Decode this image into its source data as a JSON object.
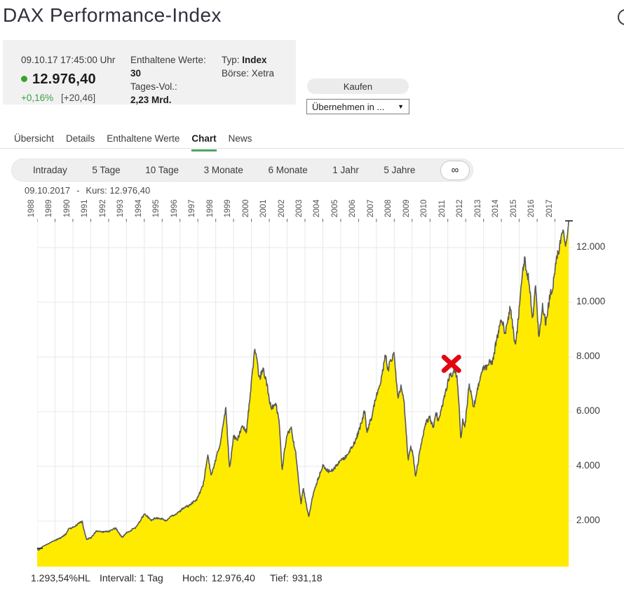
{
  "header": {
    "title": "DAX Performance-Index",
    "search_icon": "magnifier-icon"
  },
  "quote_box": {
    "timestamp": "09.10.17  17:45:00 Uhr",
    "price": "12.976,40",
    "change_percent": "+0,16%",
    "change_absolute": "[+20,46]",
    "included_values_label": "Enthaltene Werte:",
    "included_values": "30",
    "volume_label": "Tages-Vol.:",
    "volume": "2,23 Mrd.",
    "type_label": "Typ:",
    "type_value": "Index",
    "exchange_label": "Börse:",
    "exchange_value": "Xetra"
  },
  "actions": {
    "buy_label": "Kaufen",
    "transfer_label": "Übernehmen in ...",
    "dropdown_arrow": "▼"
  },
  "tabs": [
    {
      "label": "Übersicht",
      "active": false
    },
    {
      "label": "Details",
      "active": false
    },
    {
      "label": "Enthaltene Werte",
      "active": false
    },
    {
      "label": "Chart",
      "active": true
    },
    {
      "label": "News",
      "active": false
    }
  ],
  "ranges": [
    {
      "label": "Intraday",
      "selected": false
    },
    {
      "label": "5 Tage",
      "selected": false
    },
    {
      "label": "10 Tage",
      "selected": false
    },
    {
      "label": "3 Monate",
      "selected": false
    },
    {
      "label": "6 Monate",
      "selected": false
    },
    {
      "label": "1 Jahr",
      "selected": false
    },
    {
      "label": "5 Jahre",
      "selected": false
    },
    {
      "label": "∞",
      "selected": true
    }
  ],
  "chart_header": {
    "date": "09.10.2017",
    "separator": "-",
    "kurs_label": "Kurs:",
    "kurs_value": "12.976,40"
  },
  "chart_data": {
    "type": "area",
    "title": "DAX Performance-Index 1988-2017, daily, linear scale",
    "x_domain": [
      1988,
      2018
    ],
    "x_tick_labels": [
      "1988",
      "1989",
      "1990",
      "1991",
      "1992",
      "1993",
      "1994",
      "1995",
      "1996",
      "1997",
      "1998",
      "1999",
      "2000",
      "2001",
      "2002",
      "2003",
      "2004",
      "2005",
      "2006",
      "2007",
      "2008",
      "2009",
      "2010",
      "2011",
      "2012",
      "2013",
      "2014",
      "2015",
      "2016",
      "2017"
    ],
    "y_ticks": [
      2000,
      4000,
      6000,
      8000,
      10000,
      12000
    ],
    "y_tick_labels": [
      "2.000",
      "4.000",
      "6.000",
      "8.000",
      "10.000",
      "12.000"
    ],
    "ylim": [
      330,
      13050
    ],
    "grid": true,
    "legend": "none",
    "series": [
      {
        "name": "DAX Performance-Index",
        "points": [
          [
            1988.0,
            1005
          ],
          [
            1988.08,
            931
          ],
          [
            1988.3,
            1070
          ],
          [
            1988.6,
            1175
          ],
          [
            1988.95,
            1290
          ],
          [
            1989.3,
            1385
          ],
          [
            1989.6,
            1530
          ],
          [
            1989.78,
            1760
          ],
          [
            1990.05,
            1800
          ],
          [
            1990.3,
            1890
          ],
          [
            1990.52,
            1968
          ],
          [
            1990.68,
            1520
          ],
          [
            1990.78,
            1335
          ],
          [
            1991.05,
            1440
          ],
          [
            1991.3,
            1670
          ],
          [
            1991.6,
            1610
          ],
          [
            1992.0,
            1630
          ],
          [
            1992.4,
            1795
          ],
          [
            1992.6,
            1550
          ],
          [
            1992.78,
            1425
          ],
          [
            1993.0,
            1570
          ],
          [
            1993.5,
            1760
          ],
          [
            1993.9,
            2160
          ],
          [
            1994.05,
            2250
          ],
          [
            1994.4,
            2005
          ],
          [
            1994.7,
            2075
          ],
          [
            1995.0,
            2045
          ],
          [
            1995.25,
            1925
          ],
          [
            1995.6,
            2135
          ],
          [
            1996.0,
            2290
          ],
          [
            1996.5,
            2520
          ],
          [
            1996.9,
            2810
          ],
          [
            1997.1,
            3025
          ],
          [
            1997.3,
            3420
          ],
          [
            1997.56,
            4438
          ],
          [
            1997.75,
            3740
          ],
          [
            1998.0,
            4290
          ],
          [
            1998.3,
            5110
          ],
          [
            1998.56,
            6171
          ],
          [
            1998.78,
            3942
          ],
          [
            1999.0,
            5060
          ],
          [
            1999.2,
            4880
          ],
          [
            1999.5,
            5430
          ],
          [
            1999.72,
            5220
          ],
          [
            2000.0,
            6960
          ],
          [
            2000.19,
            8136
          ],
          [
            2000.42,
            7050
          ],
          [
            2000.65,
            7440
          ],
          [
            2000.9,
            6750
          ],
          [
            2001.1,
            6080
          ],
          [
            2001.38,
            6270
          ],
          [
            2001.56,
            5580
          ],
          [
            2001.72,
            3880
          ],
          [
            2001.86,
            4680
          ],
          [
            2002.0,
            5160
          ],
          [
            2002.22,
            5390
          ],
          [
            2002.5,
            4340
          ],
          [
            2002.62,
            3580
          ],
          [
            2002.78,
            2640
          ],
          [
            2002.9,
            3290
          ],
          [
            2003.05,
            2740
          ],
          [
            2003.21,
            2203
          ],
          [
            2003.45,
            2990
          ],
          [
            2003.7,
            3470
          ],
          [
            2004.0,
            4020
          ],
          [
            2004.3,
            3830
          ],
          [
            2004.6,
            3890
          ],
          [
            2005.0,
            4260
          ],
          [
            2005.4,
            4470
          ],
          [
            2005.8,
            5030
          ],
          [
            2006.0,
            5430
          ],
          [
            2006.35,
            6120
          ],
          [
            2006.46,
            5350
          ],
          [
            2006.8,
            6090
          ],
          [
            2007.0,
            6650
          ],
          [
            2007.25,
            7040
          ],
          [
            2007.51,
            8106
          ],
          [
            2007.63,
            7430
          ],
          [
            2007.9,
            7870
          ],
          [
            2008.0,
            8045
          ],
          [
            2008.2,
            6450
          ],
          [
            2008.4,
            7075
          ],
          [
            2008.56,
            6380
          ],
          [
            2008.78,
            4350
          ],
          [
            2008.92,
            4780
          ],
          [
            2009.05,
            4500
          ],
          [
            2009.19,
            3666
          ],
          [
            2009.5,
            4930
          ],
          [
            2009.75,
            5690
          ],
          [
            2010.0,
            5960
          ],
          [
            2010.16,
            5540
          ],
          [
            2010.35,
            6140
          ],
          [
            2010.46,
            5810
          ],
          [
            2010.7,
            6240
          ],
          [
            2011.0,
            6950
          ],
          [
            2011.12,
            7310
          ],
          [
            2011.36,
            7540
          ],
          [
            2011.5,
            7410
          ],
          [
            2011.62,
            6450
          ],
          [
            2011.73,
            5070
          ],
          [
            2011.83,
            5840
          ],
          [
            2011.95,
            5530
          ],
          [
            2012.2,
            6990
          ],
          [
            2012.44,
            6070
          ],
          [
            2012.7,
            6880
          ],
          [
            2013.0,
            7640
          ],
          [
            2013.35,
            7840
          ],
          [
            2013.5,
            7620
          ],
          [
            2013.75,
            8640
          ],
          [
            2014.0,
            9560
          ],
          [
            2014.22,
            9090
          ],
          [
            2014.5,
            9940
          ],
          [
            2014.62,
            9240
          ],
          [
            2014.78,
            8590
          ],
          [
            2014.97,
            9890
          ],
          [
            2015.1,
            10880
          ],
          [
            2015.29,
            11970
          ],
          [
            2015.55,
            11090
          ],
          [
            2015.74,
            9440
          ],
          [
            2015.9,
            10790
          ],
          [
            2016.1,
            8760
          ],
          [
            2016.3,
            9900
          ],
          [
            2016.48,
            9280
          ],
          [
            2016.7,
            10280
          ],
          [
            2016.9,
            10690
          ],
          [
            2017.05,
            11520
          ],
          [
            2017.25,
            12080
          ],
          [
            2017.45,
            12700
          ],
          [
            2017.6,
            12140
          ],
          [
            2017.7,
            12480
          ],
          [
            2017.77,
            12976
          ]
        ]
      }
    ],
    "marker": {
      "shape": "x",
      "year": 2011.2,
      "value": 7750,
      "color": "#e30613"
    },
    "colors": {
      "fill": "#ffeb00",
      "line": "#57585a",
      "grid": "#e8e8e8",
      "tick": "#666666",
      "end_dash": "#1a1a1a"
    },
    "first_value": 1005,
    "last_value": 12976
  },
  "chart_footer": {
    "hl_percent": "1.293,54%HL",
    "interval": "Intervall: 1 Tag",
    "high_label": "Hoch:",
    "high_value": "12.976,40",
    "low_label": "Tief:",
    "low_value": "931,18"
  },
  "colors": {
    "accent_green": "#4aa564",
    "positive_green": "#3fa046",
    "trend_dot_green": "#35a42c",
    "marker_red": "#e30613",
    "area_yellow": "#ffeb00",
    "box_gray": "#f1f1f2"
  }
}
